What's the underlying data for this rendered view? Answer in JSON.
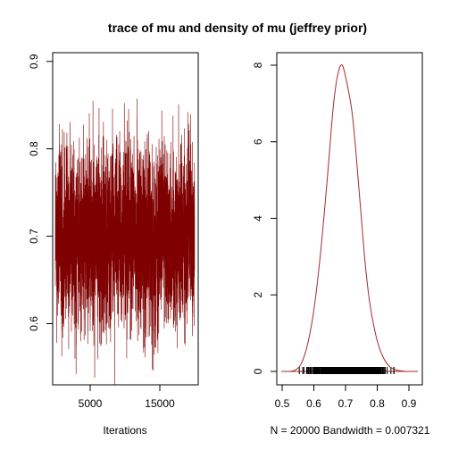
{
  "figure": {
    "title": "trace of mu and density of mu (jeffrey prior)"
  },
  "chart_data": [
    {
      "type": "line",
      "panel": "trace",
      "title": "",
      "xlabel": "Iterations",
      "ylabel": "",
      "xlim": [
        1,
        20000
      ],
      "ylim": [
        0.53,
        0.91
      ],
      "x_ticks": [
        5000,
        15000
      ],
      "x_tick_labels": [
        "5000",
        "15000"
      ],
      "y_ticks": [
        0.6,
        0.7,
        0.8,
        0.9
      ],
      "y_tick_labels": [
        "0.6",
        "0.7",
        "0.8",
        "0.9"
      ],
      "n_iterations": 20000,
      "series": [
        {
          "color": "#7f0000",
          "summary": {
            "mean": 0.7,
            "min": 0.53,
            "max": 0.91,
            "core_low": 0.61,
            "core_high": 0.8
          }
        }
      ],
      "grid": false,
      "legend": "none"
    },
    {
      "type": "line",
      "panel": "density",
      "title": "",
      "xlabel": "N = 20000   Bandwidth = 0.007321",
      "ylabel": "",
      "xlim": [
        0.5,
        0.92
      ],
      "ylim": [
        0,
        8
      ],
      "x_ticks": [
        0.5,
        0.6,
        0.7,
        0.8,
        0.9
      ],
      "x_tick_labels": [
        "0.5",
        "0.6",
        "0.7",
        "0.8",
        "0.9"
      ],
      "y_ticks": [
        0,
        2,
        4,
        6,
        8
      ],
      "y_tick_labels": [
        "0",
        "2",
        "4",
        "6",
        "8"
      ],
      "series": [
        {
          "color": "#a52a2a",
          "x": [
            0.52,
            0.54,
            0.56,
            0.58,
            0.6,
            0.62,
            0.64,
            0.65,
            0.66,
            0.67,
            0.68,
            0.69,
            0.7,
            0.71,
            0.72,
            0.73,
            0.74,
            0.75,
            0.76,
            0.77,
            0.78,
            0.8,
            0.82,
            0.84,
            0.86,
            0.88,
            0.9,
            0.92
          ],
          "y": [
            0.0,
            0.03,
            0.2,
            0.7,
            1.6,
            3.0,
            4.8,
            5.8,
            6.8,
            7.5,
            7.9,
            8.0,
            7.7,
            7.3,
            6.8,
            6.0,
            5.0,
            4.0,
            3.0,
            2.2,
            1.6,
            0.8,
            0.35,
            0.12,
            0.04,
            0.01,
            0.0,
            0.0
          ]
        }
      ],
      "rug": {
        "range": [
          0.54,
          0.89
        ],
        "n": 20000
      },
      "grid": false,
      "legend": "none"
    }
  ]
}
